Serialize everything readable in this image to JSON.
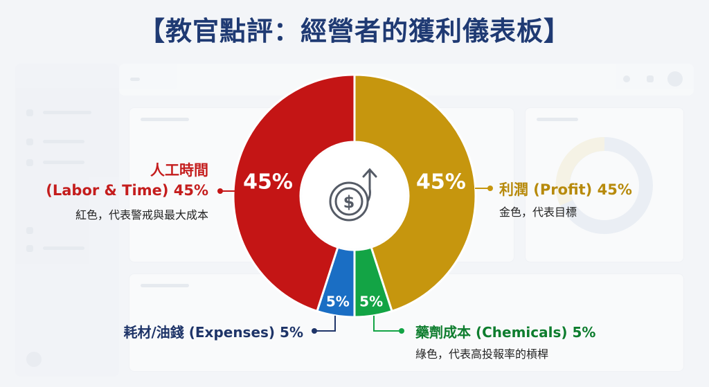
{
  "title": "【教官點評：經營者的獲利儀表板】",
  "colors": {
    "labor": "#c41515",
    "profit": "#c6960e",
    "expenses": "#1a6ec4",
    "chemicals": "#13a445",
    "title": "#1f3a73"
  },
  "labels": {
    "labor_name": "人工時間",
    "labor_value_line": "(Labor & Time) 45%",
    "labor_desc": "紅色，代表警戒與最大成本",
    "profit_value_line": "利潤 (Profit) 45%",
    "profit_desc": "金色，代表目標",
    "expenses_value_line": "耗材/油錢 (Expenses) 5%",
    "chemicals_value_line": "藥劑成本 (Chemicals) 5%",
    "chemicals_desc": "綠色，代表高投報率的槓桿"
  },
  "center_icon": "dollar-growth-arrow-icon",
  "chart_data": {
    "type": "pie",
    "donut": true,
    "slices": [
      {
        "label": "利潤 (Profit)",
        "value": 45,
        "display": "45%",
        "color": "#c6960e"
      },
      {
        "label": "藥劑成本 (Chemicals)",
        "value": 5,
        "display": "5%",
        "color": "#13a445"
      },
      {
        "label": "耗材/油錢 (Expenses)",
        "value": 5,
        "display": "5%",
        "color": "#1a6ec4"
      },
      {
        "label": "人工時間 (Labor & Time)",
        "value": 45,
        "display": "45%",
        "color": "#c41515"
      }
    ]
  }
}
